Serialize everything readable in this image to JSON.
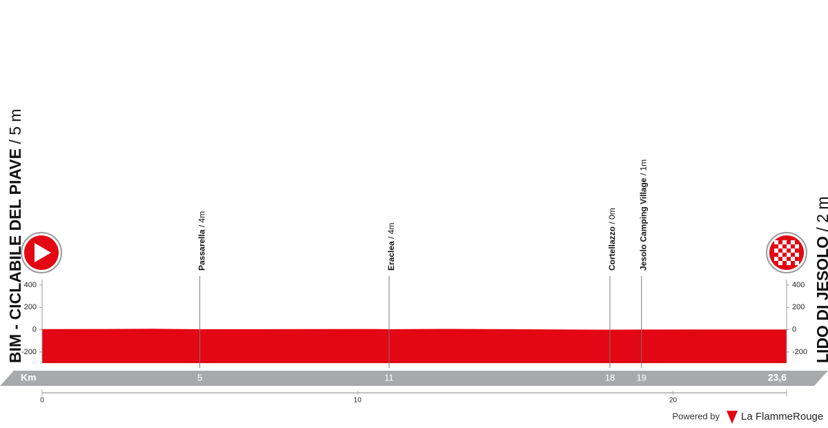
{
  "chart_data": {
    "type": "area",
    "start_name": "BIM - CICLABILE DEL PIAVE",
    "start_altitude": "/ 5 m",
    "finish_name": "LIDO DI JESOLO",
    "finish_altitude": "/ 2 m",
    "x": [
      0,
      2,
      3.5,
      5,
      8,
      10.5,
      11,
      13,
      15,
      18,
      19,
      21,
      23.6
    ],
    "values": [
      5,
      6,
      8,
      4,
      5,
      6,
      4,
      7,
      4,
      0,
      1,
      2,
      2
    ],
    "color": "#e30613",
    "xlim": [
      0,
      23.6
    ],
    "xticks": [
      0,
      10,
      20
    ],
    "ylim": [
      -300,
      400
    ],
    "yticks": [
      -200,
      0,
      200,
      400
    ],
    "km_label": "Km",
    "waypoints": [
      {
        "name": "Passarella",
        "altitude": "/ 4m",
        "km": 5
      },
      {
        "name": "Eraclea",
        "altitude": "/ 4m",
        "km": 11
      },
      {
        "name": "Cortellazzo",
        "altitude": "/ 0m",
        "km": 18
      },
      {
        "name": "Jesolo Camping Village",
        "altitude": "/ 1m",
        "km": 19
      }
    ],
    "finish_km": {
      "value": 23.6,
      "label": "23,6"
    },
    "footer_prefix": "Powered by",
    "footer_brand": "La FlammeRouge"
  }
}
